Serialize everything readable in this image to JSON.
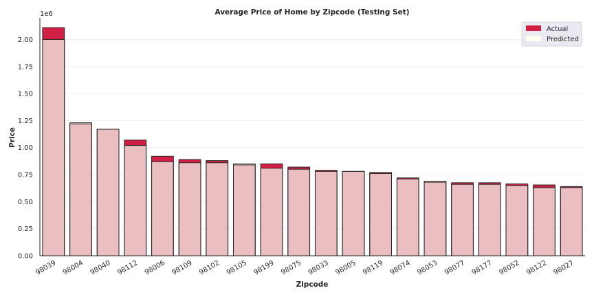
{
  "chart_data": {
    "type": "bar",
    "title": "Average Price of Home by Zipcode (Testing Set)",
    "xlabel": "Zipcode",
    "ylabel": "Price",
    "y_offset_label": "1e6",
    "ylim": [
      0,
      2.2
    ],
    "yticks": [
      "0.00",
      "0.25",
      "0.50",
      "0.75",
      "1.00",
      "1.25",
      "1.50",
      "1.75",
      "2.00"
    ],
    "grid": "horizontal",
    "legend_position": "top-right",
    "categories": [
      "98039",
      "98004",
      "98040",
      "98112",
      "98006",
      "98109",
      "98102",
      "98105",
      "98199",
      "98075",
      "98033",
      "98005",
      "98119",
      "98074",
      "98053",
      "98077",
      "98177",
      "98052",
      "98122",
      "98027"
    ],
    "series": [
      {
        "name": "Actual",
        "color": "#d11f44",
        "values": [
          2.11,
          1.22,
          1.17,
          1.07,
          0.92,
          0.89,
          0.88,
          0.84,
          0.85,
          0.82,
          0.79,
          0.78,
          0.77,
          0.72,
          0.68,
          0.675,
          0.675,
          0.665,
          0.655,
          0.64
        ]
      },
      {
        "name": "Predicted",
        "color": "#fffff0",
        "values": [
          2.0,
          1.23,
          1.17,
          1.02,
          0.87,
          0.86,
          0.86,
          0.85,
          0.81,
          0.8,
          0.78,
          0.78,
          0.76,
          0.71,
          0.69,
          0.66,
          0.66,
          0.65,
          0.63,
          0.63
        ]
      }
    ],
    "overlap_color": "#ebbfc1"
  }
}
